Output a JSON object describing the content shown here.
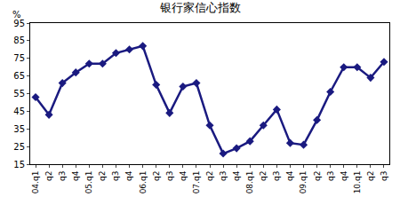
{
  "chart_data": {
    "type": "line",
    "title": "银行家信心指数",
    "y_label": "%",
    "categories": [
      "04.q1",
      "q2",
      "q3",
      "q4",
      "05.q1",
      "q2",
      "q3",
      "q4",
      "06.q1",
      "q2",
      "q3",
      "q4",
      "07.q1",
      "q2",
      "q3",
      "q4",
      "08.q1",
      "q2",
      "q3",
      "q4",
      "09.q1",
      "q2",
      "q3",
      "q4",
      "10.q1",
      "q2",
      "q3"
    ],
    "values": [
      53,
      43,
      61,
      67,
      72,
      72,
      78,
      80,
      82,
      60,
      44,
      59,
      61,
      37,
      21,
      24,
      28,
      37,
      46,
      27,
      26,
      40,
      56,
      70,
      70,
      64,
      73
    ],
    "color": "#1a1a80",
    "marker": "diamond",
    "ylim": [
      15,
      95
    ],
    "yticks": [
      15,
      25,
      35,
      45,
      55,
      65,
      75,
      85,
      95
    ],
    "grid": false
  }
}
